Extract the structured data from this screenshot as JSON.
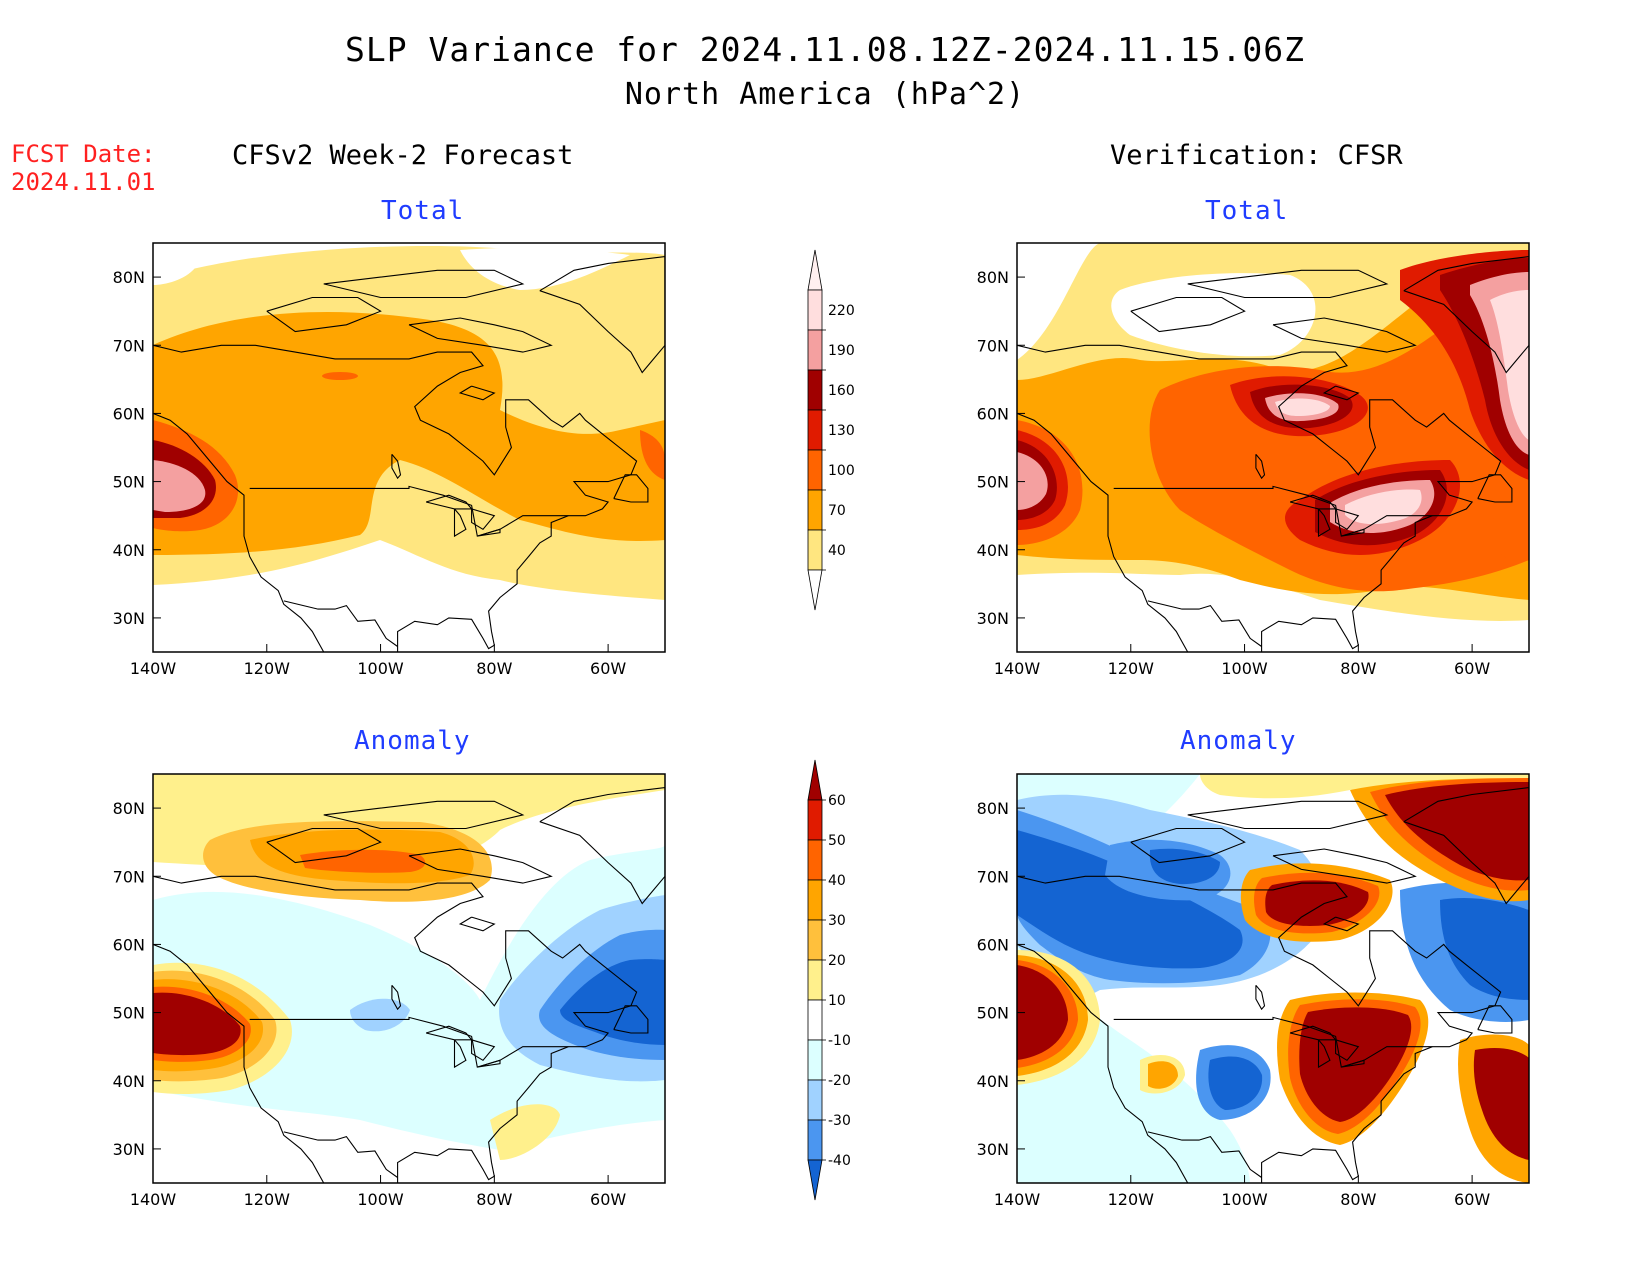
{
  "title": {
    "line1": "SLP Variance for 2024.11.08.12Z-2024.11.15.06Z",
    "line2": "North America (hPa^2)"
  },
  "fcst_date": {
    "label": "FCST Date:",
    "value": "2024.11.01"
  },
  "columns": {
    "left": "CFSv2 Week-2 Forecast",
    "right": "Verification: CFSR"
  },
  "panels": [
    {
      "id": "fcst-total",
      "subtitle": "Total"
    },
    {
      "id": "verif-total",
      "subtitle": "Total"
    },
    {
      "id": "fcst-anomaly",
      "subtitle": "Anomaly"
    },
    {
      "id": "verif-anomaly",
      "subtitle": "Anomaly"
    }
  ],
  "axes": {
    "x_ticks": [
      "140W",
      "120W",
      "100W",
      "80W",
      "60W"
    ],
    "y_ticks": [
      "80N",
      "70N",
      "60N",
      "50N",
      "40N",
      "30N"
    ],
    "lon_range": [
      -140,
      -50
    ],
    "lat_range": [
      25,
      85
    ]
  },
  "colorbars": {
    "total": {
      "labels": [
        "220",
        "190",
        "160",
        "130",
        "100",
        "70",
        "40"
      ],
      "colors": [
        "#ffdede",
        "#f4a0a0",
        "#a00000",
        "#e01b00",
        "#ff6400",
        "#ffa500",
        "#ffe680"
      ]
    },
    "anomaly": {
      "labels": [
        "60",
        "50",
        "40",
        "30",
        "20",
        "10",
        "-10",
        "-20",
        "-30",
        "-40"
      ],
      "colors": [
        "#a00000",
        "#e01b00",
        "#ff6400",
        "#ffa500",
        "#ffc03c",
        "#fff08c",
        "#ffffff",
        "#dcffff",
        "#a0d2ff",
        "#4b96f0",
        "#1464d2"
      ]
    }
  }
}
